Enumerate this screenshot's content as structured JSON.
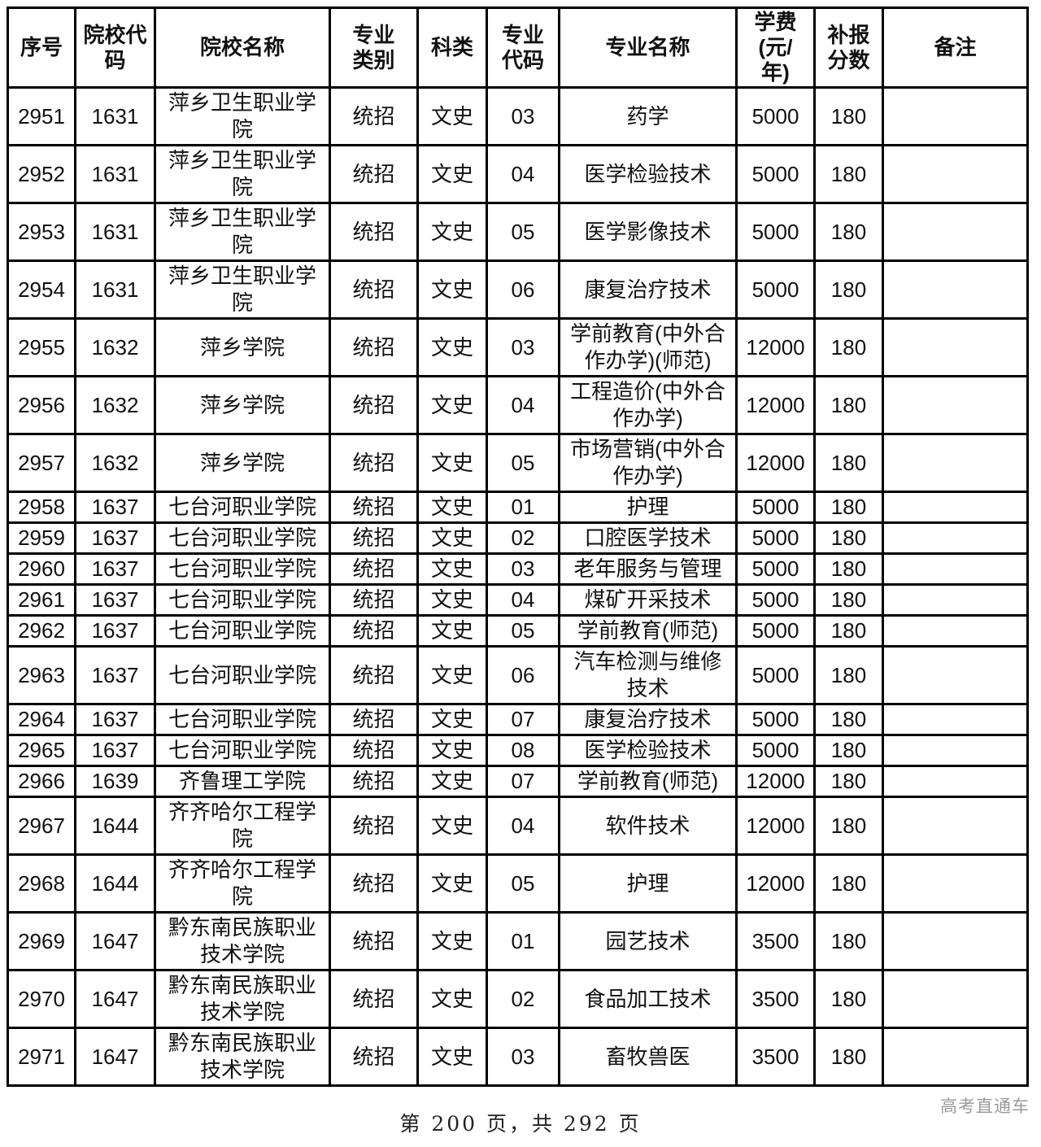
{
  "table": {
    "columns": [
      {
        "key": "seq",
        "label": "序号"
      },
      {
        "key": "school-code",
        "label": "院校代\n码"
      },
      {
        "key": "school-name",
        "label": "院校名称"
      },
      {
        "key": "major-category",
        "label": "专业\n类别"
      },
      {
        "key": "subject-type",
        "label": "科类"
      },
      {
        "key": "major-code",
        "label": "专业\n代码"
      },
      {
        "key": "major-name",
        "label": "专业名称"
      },
      {
        "key": "tuition",
        "label": "学费\n(元/\n年)"
      },
      {
        "key": "makeup-score",
        "label": "补报\n分数"
      },
      {
        "key": "remark",
        "label": "备注"
      }
    ],
    "rows": [
      [
        "2951",
        "1631",
        "萍乡卫生职业学院",
        "统招",
        "文史",
        "03",
        "药学",
        "5000",
        "180",
        ""
      ],
      [
        "2952",
        "1631",
        "萍乡卫生职业学院",
        "统招",
        "文史",
        "04",
        "医学检验技术",
        "5000",
        "180",
        ""
      ],
      [
        "2953",
        "1631",
        "萍乡卫生职业学院",
        "统招",
        "文史",
        "05",
        "医学影像技术",
        "5000",
        "180",
        ""
      ],
      [
        "2954",
        "1631",
        "萍乡卫生职业学院",
        "统招",
        "文史",
        "06",
        "康复治疗技术",
        "5000",
        "180",
        ""
      ],
      [
        "2955",
        "1632",
        "萍乡学院",
        "统招",
        "文史",
        "03",
        "学前教育(中外合作办学)(师范)",
        "12000",
        "180",
        ""
      ],
      [
        "2956",
        "1632",
        "萍乡学院",
        "统招",
        "文史",
        "04",
        "工程造价(中外合作办学)",
        "12000",
        "180",
        ""
      ],
      [
        "2957",
        "1632",
        "萍乡学院",
        "统招",
        "文史",
        "05",
        "市场营销(中外合作办学)",
        "12000",
        "180",
        ""
      ],
      [
        "2958",
        "1637",
        "七台河职业学院",
        "统招",
        "文史",
        "01",
        "护理",
        "5000",
        "180",
        ""
      ],
      [
        "2959",
        "1637",
        "七台河职业学院",
        "统招",
        "文史",
        "02",
        "口腔医学技术",
        "5000",
        "180",
        ""
      ],
      [
        "2960",
        "1637",
        "七台河职业学院",
        "统招",
        "文史",
        "03",
        "老年服务与管理",
        "5000",
        "180",
        ""
      ],
      [
        "2961",
        "1637",
        "七台河职业学院",
        "统招",
        "文史",
        "04",
        "煤矿开采技术",
        "5000",
        "180",
        ""
      ],
      [
        "2962",
        "1637",
        "七台河职业学院",
        "统招",
        "文史",
        "05",
        "学前教育(师范)",
        "5000",
        "180",
        ""
      ],
      [
        "2963",
        "1637",
        "七台河职业学院",
        "统招",
        "文史",
        "06",
        "汽车检测与维修技术",
        "5000",
        "180",
        ""
      ],
      [
        "2964",
        "1637",
        "七台河职业学院",
        "统招",
        "文史",
        "07",
        "康复治疗技术",
        "5000",
        "180",
        ""
      ],
      [
        "2965",
        "1637",
        "七台河职业学院",
        "统招",
        "文史",
        "08",
        "医学检验技术",
        "5000",
        "180",
        ""
      ],
      [
        "2966",
        "1639",
        "齐鲁理工学院",
        "统招",
        "文史",
        "07",
        "学前教育(师范)",
        "12000",
        "180",
        ""
      ],
      [
        "2967",
        "1644",
        "齐齐哈尔工程学院",
        "统招",
        "文史",
        "04",
        "软件技术",
        "12000",
        "180",
        ""
      ],
      [
        "2968",
        "1644",
        "齐齐哈尔工程学院",
        "统招",
        "文史",
        "05",
        "护理",
        "12000",
        "180",
        ""
      ],
      [
        "2969",
        "1647",
        "黔东南民族职业技术学院",
        "统招",
        "文史",
        "01",
        "园艺技术",
        "3500",
        "180",
        ""
      ],
      [
        "2970",
        "1647",
        "黔东南民族职业技术学院",
        "统招",
        "文史",
        "02",
        "食品加工技术",
        "3500",
        "180",
        ""
      ],
      [
        "2971",
        "1647",
        "黔东南民族职业技术学院",
        "统招",
        "文史",
        "03",
        "畜牧兽医",
        "3500",
        "180",
        ""
      ]
    ]
  },
  "footer": {
    "page_indicator": "第 200 页，共 292 页",
    "watermark": "高考直通车"
  }
}
